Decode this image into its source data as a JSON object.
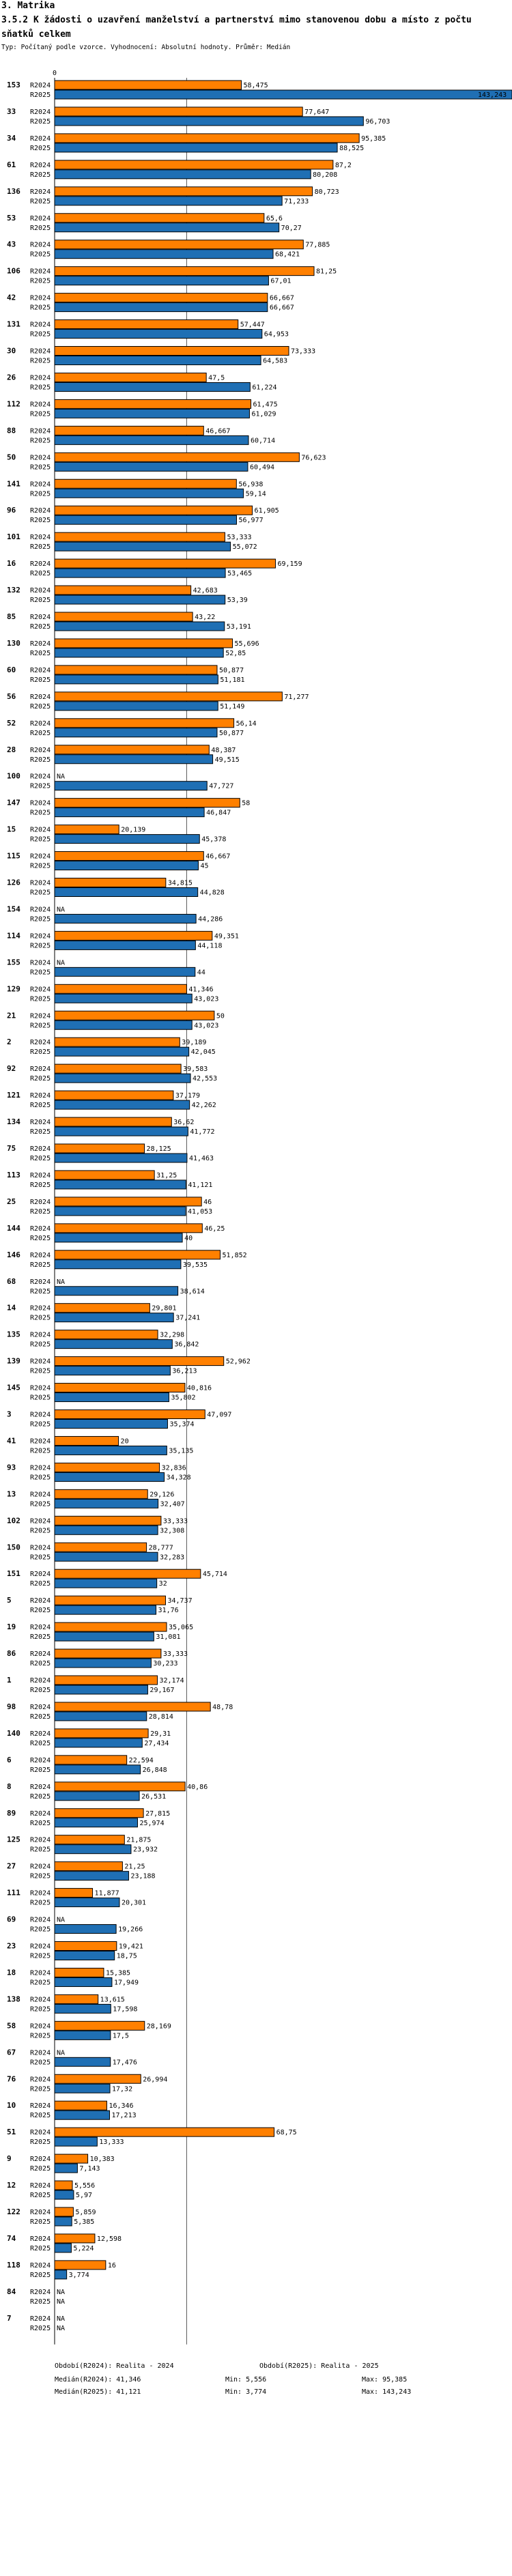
{
  "header": {
    "section": "3. Matrika",
    "title": "3.5.2 K žádosti o uzavření manželství a partnerství mimo stanovenou dobu a místo z počtu sňatků celkem",
    "subtitle": "Typ: Počítaný podle vzorce. Vyhodnocení: Absolutní hodnoty. Průměr: Medián"
  },
  "colors": {
    "r2024": "#ff8000",
    "r2025": "#1f6fb4",
    "bar_border": "#000000",
    "median_line": "#555555",
    "axis": "#000000"
  },
  "chart_data": {
    "type": "bar",
    "orientation": "horizontal",
    "title": "3.5.2 K žádosti o uzavření manželství a partnerství mimo stanovenou dobu a místo z počtu sňatků celkem",
    "xlim": [
      0,
      143.243
    ],
    "axis_tick_label": "0",
    "series": [
      {
        "name": "R2024",
        "color": "#ff8000",
        "values": [
          58.475,
          77.647,
          95.385,
          87.2,
          80.723,
          65.6,
          77.885,
          81.25,
          66.667,
          57.447,
          73.333,
          47.5,
          61.475,
          46.667,
          76.623,
          56.938,
          61.905,
          53.333,
          69.159,
          42.683,
          43.22,
          55.696,
          50.877,
          71.277,
          56.14,
          48.387,
          null,
          58,
          20.139,
          46.667,
          34.815,
          null,
          49.351,
          null,
          41.346,
          50,
          39.189,
          39.583,
          37.179,
          36.62,
          28.125,
          31.25,
          46,
          46.25,
          51.852,
          null,
          29.801,
          32.298,
          52.962,
          40.816,
          47.097,
          20,
          32.836,
          29.126,
          33.333,
          28.777,
          45.714,
          34.737,
          35.065,
          33.333,
          32.174,
          48.78,
          29.31,
          22.594,
          40.86,
          27.815,
          21.875,
          21.25,
          11.877,
          null,
          19.421,
          15.385,
          13.615,
          28.169,
          null,
          26.994,
          16.346,
          68.75,
          10.383,
          5.556,
          5.859,
          12.598,
          16,
          null,
          null
        ]
      },
      {
        "name": "R2025",
        "color": "#1f6fb4",
        "values": [
          143.243,
          96.703,
          88.525,
          80.208,
          71.233,
          70.27,
          68.421,
          67.01,
          66.667,
          64.953,
          64.583,
          61.224,
          61.029,
          60.714,
          60.494,
          59.14,
          56.977,
          55.072,
          53.465,
          53.39,
          53.191,
          52.85,
          51.181,
          51.149,
          50.877,
          49.515,
          47.727,
          46.847,
          45.378,
          45,
          44.828,
          44.286,
          44.118,
          44,
          43.023,
          43.023,
          42.045,
          42.553,
          42.262,
          41.772,
          41.463,
          41.121,
          41.053,
          40,
          39.535,
          38.614,
          37.241,
          36.842,
          36.213,
          35.802,
          35.374,
          35.135,
          34.328,
          32.407,
          32.308,
          32.283,
          32,
          31.76,
          31.081,
          30.233,
          29.167,
          28.814,
          27.434,
          26.848,
          26.531,
          25.974,
          23.932,
          23.188,
          20.301,
          19.266,
          18.75,
          17.949,
          17.598,
          17.5,
          17.476,
          17.32,
          17.213,
          13.333,
          7.143,
          5.97,
          5.385,
          5.224,
          3.774,
          null,
          null
        ]
      }
    ],
    "categories": [
      "153",
      "33",
      "34",
      "61",
      "136",
      "53",
      "43",
      "106",
      "42",
      "131",
      "30",
      "26",
      "112",
      "88",
      "50",
      "141",
      "96",
      "101",
      "16",
      "132",
      "85",
      "130",
      "60",
      "56",
      "52",
      "28",
      "100",
      "147",
      "15",
      "115",
      "126",
      "154",
      "114",
      "155",
      "129",
      "21",
      "2",
      "92",
      "121",
      "134",
      "75",
      "113",
      "25",
      "144",
      "146",
      "68",
      "14",
      "135",
      "139",
      "145",
      "3",
      "41",
      "93",
      "13",
      "102",
      "150",
      "151",
      "5",
      "19",
      "86",
      "1",
      "98",
      "140",
      "6",
      "8",
      "89",
      "125",
      "27",
      "111",
      "69",
      "23",
      "18",
      "138",
      "58",
      "67",
      "76",
      "10",
      "51",
      "9",
      "12",
      "122",
      "74",
      "118",
      "84",
      "7"
    ],
    "value_labels": {
      "r2024": [
        "58,475",
        "77,647",
        "95,385",
        "87,2",
        "80,723",
        "65,6",
        "77,885",
        "81,25",
        "66,667",
        "57,447",
        "73,333",
        "47,5",
        "61,475",
        "46,667",
        "76,623",
        "56,938",
        "61,905",
        "53,333",
        "69,159",
        "42,683",
        "43,22",
        "55,696",
        "50,877",
        "71,277",
        "56,14",
        "48,387",
        "NA",
        "58",
        "20,139",
        "46,667",
        "34,815",
        "NA",
        "49,351",
        "NA",
        "41,346",
        "50",
        "39,189",
        "39,583",
        "37,179",
        "36,62",
        "28,125",
        "31,25",
        "46",
        "46,25",
        "51,852",
        "NA",
        "29,801",
        "32,298",
        "52,962",
        "40,816",
        "47,097",
        "20",
        "32,836",
        "29,126",
        "33,333",
        "28,777",
        "45,714",
        "34,737",
        "35,065",
        "33,333",
        "32,174",
        "48,78",
        "29,31",
        "22,594",
        "40,86",
        "27,815",
        "21,875",
        "21,25",
        "11,877",
        "NA",
        "19,421",
        "15,385",
        "13,615",
        "28,169",
        "NA",
        "26,994",
        "16,346",
        "68,75",
        "10,383",
        "5,556",
        "5,859",
        "12,598",
        "16",
        "NA",
        "NA"
      ],
      "r2025": [
        "143,243",
        "96,703",
        "88,525",
        "80,208",
        "71,233",
        "70,27",
        "68,421",
        "67,01",
        "66,667",
        "64,953",
        "64,583",
        "61,224",
        "61,029",
        "60,714",
        "60,494",
        "59,14",
        "56,977",
        "55,072",
        "53,465",
        "53,39",
        "53,191",
        "52,85",
        "51,181",
        "51,149",
        "50,877",
        "49,515",
        "47,727",
        "46,847",
        "45,378",
        "45",
        "44,828",
        "44,286",
        "44,118",
        "44",
        "43,023",
        "43,023",
        "42,045",
        "42,553",
        "42,262",
        "41,772",
        "41,463",
        "41,121",
        "41,053",
        "40",
        "39,535",
        "38,614",
        "37,241",
        "36,842",
        "36,213",
        "35,802",
        "35,374",
        "35,135",
        "34,328",
        "32,407",
        "32,308",
        "32,283",
        "32",
        "31,76",
        "31,081",
        "30,233",
        "29,167",
        "28,814",
        "27,434",
        "26,848",
        "26,531",
        "25,974",
        "23,932",
        "23,188",
        "20,301",
        "19,266",
        "18,75",
        "17,949",
        "17,598",
        "17,5",
        "17,476",
        "17,32",
        "17,213",
        "13,333",
        "7,143",
        "5,97",
        "5,385",
        "5,224",
        "3,774",
        "NA",
        "NA"
      ]
    },
    "median": 41.346,
    "footer": {
      "left_title": "Období(R2024): Realita - 2024",
      "right_title": "Období(R2025): Realita - 2025",
      "stats": [
        {
          "label": "Medián(R2024): 41,346",
          "min": "Min: 5,556",
          "max": "Max: 95,385"
        },
        {
          "label": "Medián(R2025): 41,121",
          "min": "Min: 3,774",
          "max": "Max: 143,243"
        }
      ]
    }
  }
}
